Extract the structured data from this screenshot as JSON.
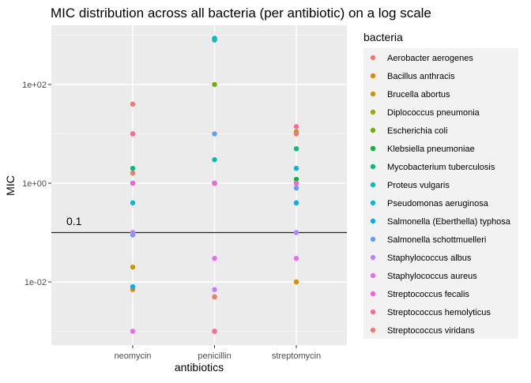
{
  "chart_data": {
    "type": "scatter",
    "title": "MIC distribution across all bacteria (per antibiotic) on a log scale",
    "xlabel": "antibiotics",
    "ylabel": "MIC",
    "y_scale": "log10",
    "ylim": [
      0.0005,
      4000
    ],
    "categories": [
      "neomycin",
      "penicillin",
      "streptomycin"
    ],
    "y_ticks": [
      {
        "value": 0.01,
        "label": "1e-02"
      },
      {
        "value": 1,
        "label": "1e+00"
      },
      {
        "value": 100,
        "label": "1e+02"
      }
    ],
    "grid": true,
    "reference_line": {
      "value": 0.1,
      "label": "0.1"
    },
    "legend": {
      "title": "bacteria",
      "position": "right"
    },
    "series": [
      {
        "name": "Aerobacter aerogenes",
        "color": "#F8766D",
        "values": [
          1.6,
          870,
          1.0
        ]
      },
      {
        "name": "Bacillus anthracis",
        "color": "#E58700",
        "values": [
          0.007,
          0.001,
          0.01
        ]
      },
      {
        "name": "Brucella abortus",
        "color": "#C99800",
        "values": [
          0.02,
          1.0,
          2.0
        ]
      },
      {
        "name": "Diplococcus pneumonia",
        "color": "#A3A500",
        "values": [
          10,
          0.005,
          11
        ]
      },
      {
        "name": "Escherichia coli",
        "color": "#6BB100",
        "values": [
          0.1,
          100,
          0.4
        ]
      },
      {
        "name": "Klebsiella pneumoniae",
        "color": "#00BA38",
        "values": [
          1.0,
          850,
          1.2
        ]
      },
      {
        "name": "Mycobacterium tuberculosis",
        "color": "#00BF7D",
        "values": [
          2.0,
          800,
          5.0
        ]
      },
      {
        "name": "Proteus vulgaris",
        "color": "#00C0AF",
        "values": [
          0.1,
          3.0,
          0.1
        ]
      },
      {
        "name": "Pseudomonas aeruginosa",
        "color": "#00BCD8",
        "values": [
          0.4,
          850,
          2.0
        ]
      },
      {
        "name": "Salmonella (Eberthella) typhosa",
        "color": "#00B0F6",
        "values": [
          0.008,
          1.0,
          0.4
        ]
      },
      {
        "name": "Salmonella schottmuelleri",
        "color": "#619CFF",
        "values": [
          0.09,
          10,
          0.8
        ]
      },
      {
        "name": "Staphylococcus albus",
        "color": "#B983FF",
        "values": [
          0.1,
          0.007,
          0.1
        ]
      },
      {
        "name": "Staphylococcus aureus",
        "color": "#E76BF3",
        "values": [
          0.001,
          0.03,
          0.03
        ]
      },
      {
        "name": "Streptococcus fecalis",
        "color": "#FD61D1",
        "values": [
          1.0,
          1.0,
          1.0
        ]
      },
      {
        "name": "Streptococcus hemolyticus",
        "color": "#FF67A4",
        "values": [
          10,
          0.001,
          14
        ]
      },
      {
        "name": "Streptococcus viridans",
        "color": "#F8766D",
        "values": [
          40,
          0.005,
          10
        ]
      }
    ]
  }
}
